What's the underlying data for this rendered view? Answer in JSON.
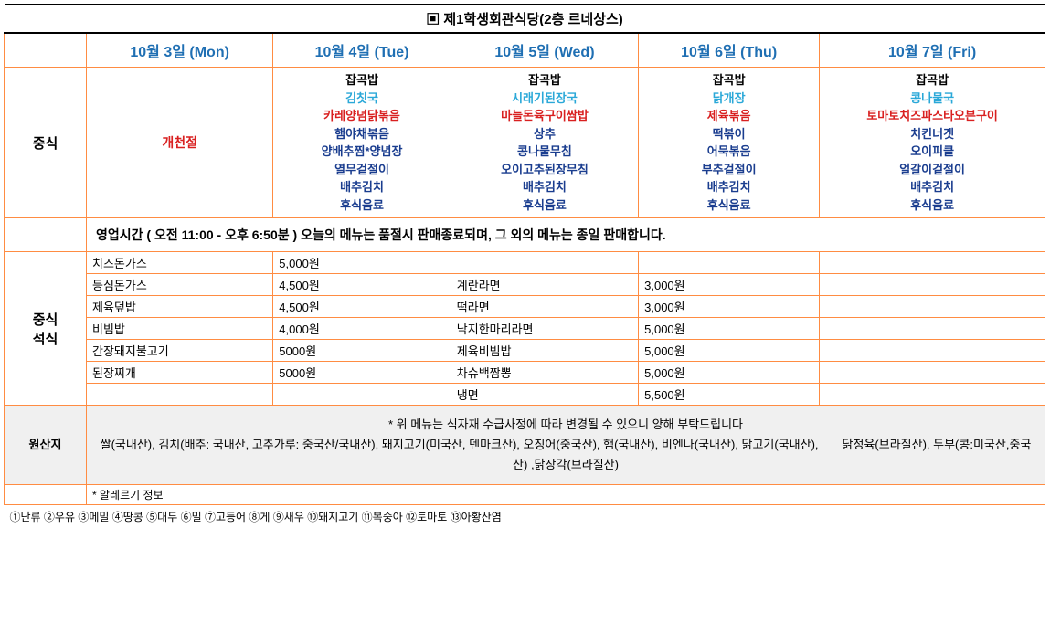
{
  "title": "▣ 제1학생회관식당(2층 르네상스)",
  "days": [
    "10월 3일 (Mon)",
    "10월 4일 (Tue)",
    "10월 5일 (Wed)",
    "10월 6일 (Thu)",
    "10월 7일 (Fri)"
  ],
  "lunch_label": "중식",
  "holiday": "개천절",
  "menus": {
    "tue": [
      {
        "t": "잡곡밥",
        "c": "c-black"
      },
      {
        "t": "김칫국",
        "c": "c-blue"
      },
      {
        "t": "카레양념닭볶음",
        "c": "c-red"
      },
      {
        "t": "햄야채볶음",
        "c": "c-navy"
      },
      {
        "t": "양배추찜*양념장",
        "c": "c-navy"
      },
      {
        "t": "열무겉절이",
        "c": "c-navy"
      },
      {
        "t": "배추김치",
        "c": "c-navy"
      },
      {
        "t": "후식음료",
        "c": "c-navy"
      }
    ],
    "wed": [
      {
        "t": "잡곡밥",
        "c": "c-black"
      },
      {
        "t": "시래기된장국",
        "c": "c-blue"
      },
      {
        "t": "마늘돈육구이쌈밥",
        "c": "c-red"
      },
      {
        "t": "상추",
        "c": "c-navy"
      },
      {
        "t": "콩나물무침",
        "c": "c-navy"
      },
      {
        "t": "오이고추된장무침",
        "c": "c-navy"
      },
      {
        "t": "배추김치",
        "c": "c-navy"
      },
      {
        "t": "후식음료",
        "c": "c-navy"
      }
    ],
    "thu": [
      {
        "t": "잡곡밥",
        "c": "c-black"
      },
      {
        "t": "닭개장",
        "c": "c-blue"
      },
      {
        "t": "제육볶음",
        "c": "c-red"
      },
      {
        "t": "떡볶이",
        "c": "c-navy"
      },
      {
        "t": "어묵볶음",
        "c": "c-navy"
      },
      {
        "t": "부추겉절이",
        "c": "c-navy"
      },
      {
        "t": "배추김치",
        "c": "c-navy"
      },
      {
        "t": "후식음료",
        "c": "c-navy"
      }
    ],
    "fri": [
      {
        "t": "잡곡밥",
        "c": "c-black"
      },
      {
        "t": "콩나물국",
        "c": "c-blue"
      },
      {
        "t": "토마토치즈파스타오븐구이",
        "c": "c-red"
      },
      {
        "t": "치킨너겟",
        "c": "c-navy"
      },
      {
        "t": "오이피클",
        "c": "c-navy"
      },
      {
        "t": "얼갈이겉절이",
        "c": "c-navy"
      },
      {
        "t": "배추김치",
        "c": "c-navy"
      },
      {
        "t": "후식음료",
        "c": "c-navy"
      }
    ]
  },
  "hours": "영업시간 ( 오전 11:00 - 오후 6:50분 ) 오늘의 메뉴는 품절시 판매종료되며, 그 외의 메뉴는 종일 판매합니다.",
  "meal_label": "중식\n석식",
  "price_rows": [
    [
      "치즈돈가스",
      "5,000원",
      "",
      "",
      ""
    ],
    [
      "등심돈가스",
      "4,500원",
      "계란라면",
      "3,000원",
      ""
    ],
    [
      "제육덮밥",
      "4,500원",
      "떡라면",
      "3,000원",
      ""
    ],
    [
      "비빔밥",
      "4,000원",
      "낙지한마리라면",
      "5,000원",
      ""
    ],
    [
      "간장돼지불고기",
      "5000원",
      "제육비빔밥",
      "5,000원",
      ""
    ],
    [
      "된장찌개",
      "5000원",
      "차슈백짬뽕",
      "5,000원",
      ""
    ],
    [
      "",
      "",
      "냉면",
      "5,500원",
      ""
    ]
  ],
  "origin_label": "원산지",
  "origin_note1": "* 위 메뉴는 식자재 수급사정에 따라 변경될 수 있으니 양해 부탁드립니다",
  "origin_note2": "쌀(국내산), 김치(배추: 국내산, 고추가루: 중국산/국내산), 돼지고기(미국산, 덴마크산), 오징어(중국산), 햄(국내산), 비엔나(국내산), 닭고기(국내산),　　닭정육(브라질산), 두부(콩:미국산,중국산) ,닭장각(브라질산)",
  "allergy_label": "* 알레르기 정보",
  "allergy_text": "①난류 ②우유 ③메밀 ④땅콩 ⑤대두 ⑥밀 ⑦고등어 ⑧게 ⑨새우 ⑩돼지고기 ⑪복숭아 ⑫토마토 ⑬아황산염",
  "colors": {
    "border": "#ff8c42",
    "header_blue": "#1f6fb3",
    "soup_blue": "#2aa8d8",
    "main_red": "#d92020",
    "side_navy": "#1a3d8f",
    "origin_bg": "#f0f0f0"
  }
}
